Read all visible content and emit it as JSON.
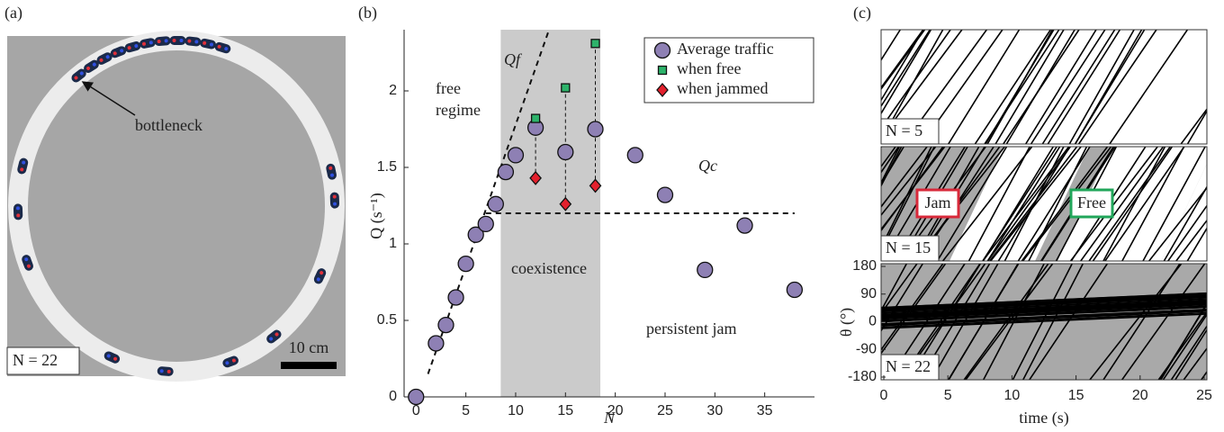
{
  "panel_a": {
    "label": "(a)",
    "annotation": "bottleneck",
    "scale_bar": "10 cm",
    "n_label": "N = 22"
  },
  "chart_data": [
    {
      "type": "scatter",
      "label": "(b)",
      "xlabel": "N",
      "ylabel": "Q (s⁻¹)",
      "xlim": [
        -1.2,
        40
      ],
      "xticks": [
        0,
        5,
        10,
        15,
        20,
        25,
        30,
        35
      ],
      "ylim": [
        0,
        2.4
      ],
      "yticks": [
        0,
        0.5,
        1,
        1.5,
        2
      ],
      "shaded_range": [
        8.5,
        18.5
      ],
      "annotations": [
        "free",
        "regime",
        "coexistence",
        "persistent jam"
      ],
      "lines": [
        {
          "label": "Qf",
          "x": [
            1.2,
            13.3
          ],
          "values": [
            0.15,
            2.39
          ]
        },
        {
          "label": "Qc",
          "x": [
            7,
            38
          ],
          "values": [
            1.2,
            1.2
          ]
        }
      ],
      "series": [
        {
          "name": "Average traffic",
          "color": "#8e80b4",
          "marker": "circle",
          "x": [
            0,
            2,
            3,
            4,
            5,
            6,
            7,
            8,
            9,
            10,
            12,
            15,
            18,
            22,
            25,
            29,
            33,
            38
          ],
          "values": [
            0,
            0.35,
            0.47,
            0.65,
            0.87,
            1.06,
            1.13,
            1.26,
            1.47,
            1.58,
            1.76,
            1.6,
            1.75,
            1.58,
            1.32,
            0.83,
            1.12,
            0.7
          ]
        },
        {
          "name": "when free",
          "color": "#2db36a",
          "marker": "square",
          "x": [
            12,
            15,
            18
          ],
          "values": [
            1.82,
            2.02,
            2.31
          ]
        },
        {
          "name": "when jammed",
          "color": "#e3202d",
          "marker": "diamond",
          "x": [
            12,
            15,
            18
          ],
          "values": [
            1.43,
            1.26,
            1.38
          ]
        }
      ]
    },
    {
      "type": "spacetime",
      "label": "(c)",
      "xlabel": "time (s)",
      "ylabel": "θ (°)",
      "xlim": [
        0,
        25
      ],
      "xticks": [
        0,
        5,
        10,
        15,
        20,
        25
      ],
      "ylim": [
        -180,
        180
      ],
      "yticks": [
        180,
        90,
        0,
        -90,
        -180
      ],
      "panels": [
        {
          "label": "N = 5"
        },
        {
          "label": "N = 15",
          "boxes": [
            "Jam",
            "Free"
          ]
        },
        {
          "label": "N = 22"
        }
      ]
    }
  ]
}
